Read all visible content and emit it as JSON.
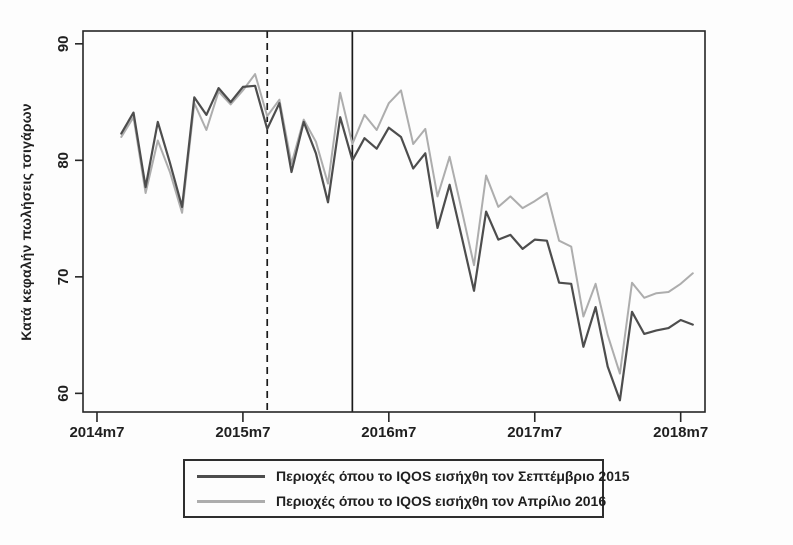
{
  "chart_data": {
    "type": "line",
    "title": "",
    "xlabel": "",
    "ylabel": "Κατά κεφαλήν πωλήσεις τσιγάρων",
    "ylim": [
      58.4,
      91.1
    ],
    "yticks": [
      60,
      70,
      80,
      90
    ],
    "xtick_labels": [
      "2014m7",
      "2015m7",
      "2016m7",
      "2017m7",
      "2018m7"
    ],
    "xtick_month_index": [
      0,
      12,
      24,
      36,
      48
    ],
    "x_month_index_start": 2,
    "x": [
      "2014m9",
      "2014m10",
      "2014m11",
      "2014m12",
      "2015m1",
      "2015m2",
      "2015m3",
      "2015m4",
      "2015m5",
      "2015m6",
      "2015m7",
      "2015m8",
      "2015m9",
      "2015m10",
      "2015m11",
      "2015m12",
      "2016m1",
      "2016m2",
      "2016m3",
      "2016m4",
      "2016m5",
      "2016m6",
      "2016m7",
      "2016m8",
      "2016m9",
      "2016m10",
      "2016m11",
      "2016m12",
      "2017m1",
      "2017m2",
      "2017m3",
      "2017m4",
      "2017m5",
      "2017m6",
      "2017m7",
      "2017m8",
      "2017m9",
      "2017m10",
      "2017m11",
      "2017m12",
      "2018m1",
      "2018m2",
      "2018m3",
      "2018m4",
      "2018m5",
      "2018m6",
      "2018m7",
      "2018m8"
    ],
    "series": [
      {
        "name": "Περιοχές όπου το IQOS εισήχθη τον Σεπτέμβριο 2015",
        "color": "#4d4d4d",
        "width": 2.2,
        "values": [
          82.3,
          84.1,
          77.7,
          83.3,
          79.8,
          76.0,
          85.4,
          83.9,
          86.2,
          85.0,
          86.3,
          86.4,
          82.7,
          84.9,
          79.0,
          83.3,
          80.6,
          76.4,
          83.7,
          80.0,
          81.9,
          81.0,
          82.8,
          82.0,
          79.3,
          80.6,
          74.2,
          77.9,
          73.4,
          68.8,
          75.6,
          73.2,
          73.6,
          72.4,
          73.2,
          73.1,
          69.5,
          69.4,
          64.0,
          67.4,
          62.3,
          59.4,
          67.0,
          65.1,
          65.4,
          65.6,
          66.3,
          65.9
        ]
      },
      {
        "name": "Περιοχές όπου το IQOS εισήχθη τον Απρίλιο 2016",
        "color": "#adadad",
        "width": 2.0,
        "values": [
          82.0,
          83.7,
          77.2,
          81.7,
          79.0,
          75.5,
          84.9,
          82.6,
          85.9,
          84.8,
          86.0,
          87.4,
          83.8,
          85.2,
          79.7,
          83.5,
          81.6,
          78.0,
          85.8,
          81.4,
          83.9,
          82.6,
          84.9,
          86.0,
          81.4,
          82.7,
          76.9,
          80.3,
          75.7,
          71.0,
          78.7,
          76.0,
          76.9,
          75.9,
          76.5,
          77.2,
          73.1,
          72.6,
          66.6,
          69.4,
          65.0,
          61.7,
          69.5,
          68.2,
          68.6,
          68.7,
          69.4,
          70.3
        ]
      }
    ],
    "vlines": [
      {
        "month": "2015m9",
        "month_index": 14,
        "style": "dashed",
        "color": "#1a1a1a"
      },
      {
        "month": "2016m4",
        "month_index": 21,
        "style": "solid",
        "color": "#1a1a1a"
      }
    ],
    "legend_position": "bottom-center",
    "grid": false
  },
  "legend": {
    "entries": [
      {
        "label": "Περιοχές όπου το IQOS εισήχθη τον Σεπτέμβριο 2015"
      },
      {
        "label": "Περιοχές όπου το IQOS εισήχθη τον Απρίλιο 2016"
      }
    ]
  },
  "axis_text_color": "#1f1f1f"
}
